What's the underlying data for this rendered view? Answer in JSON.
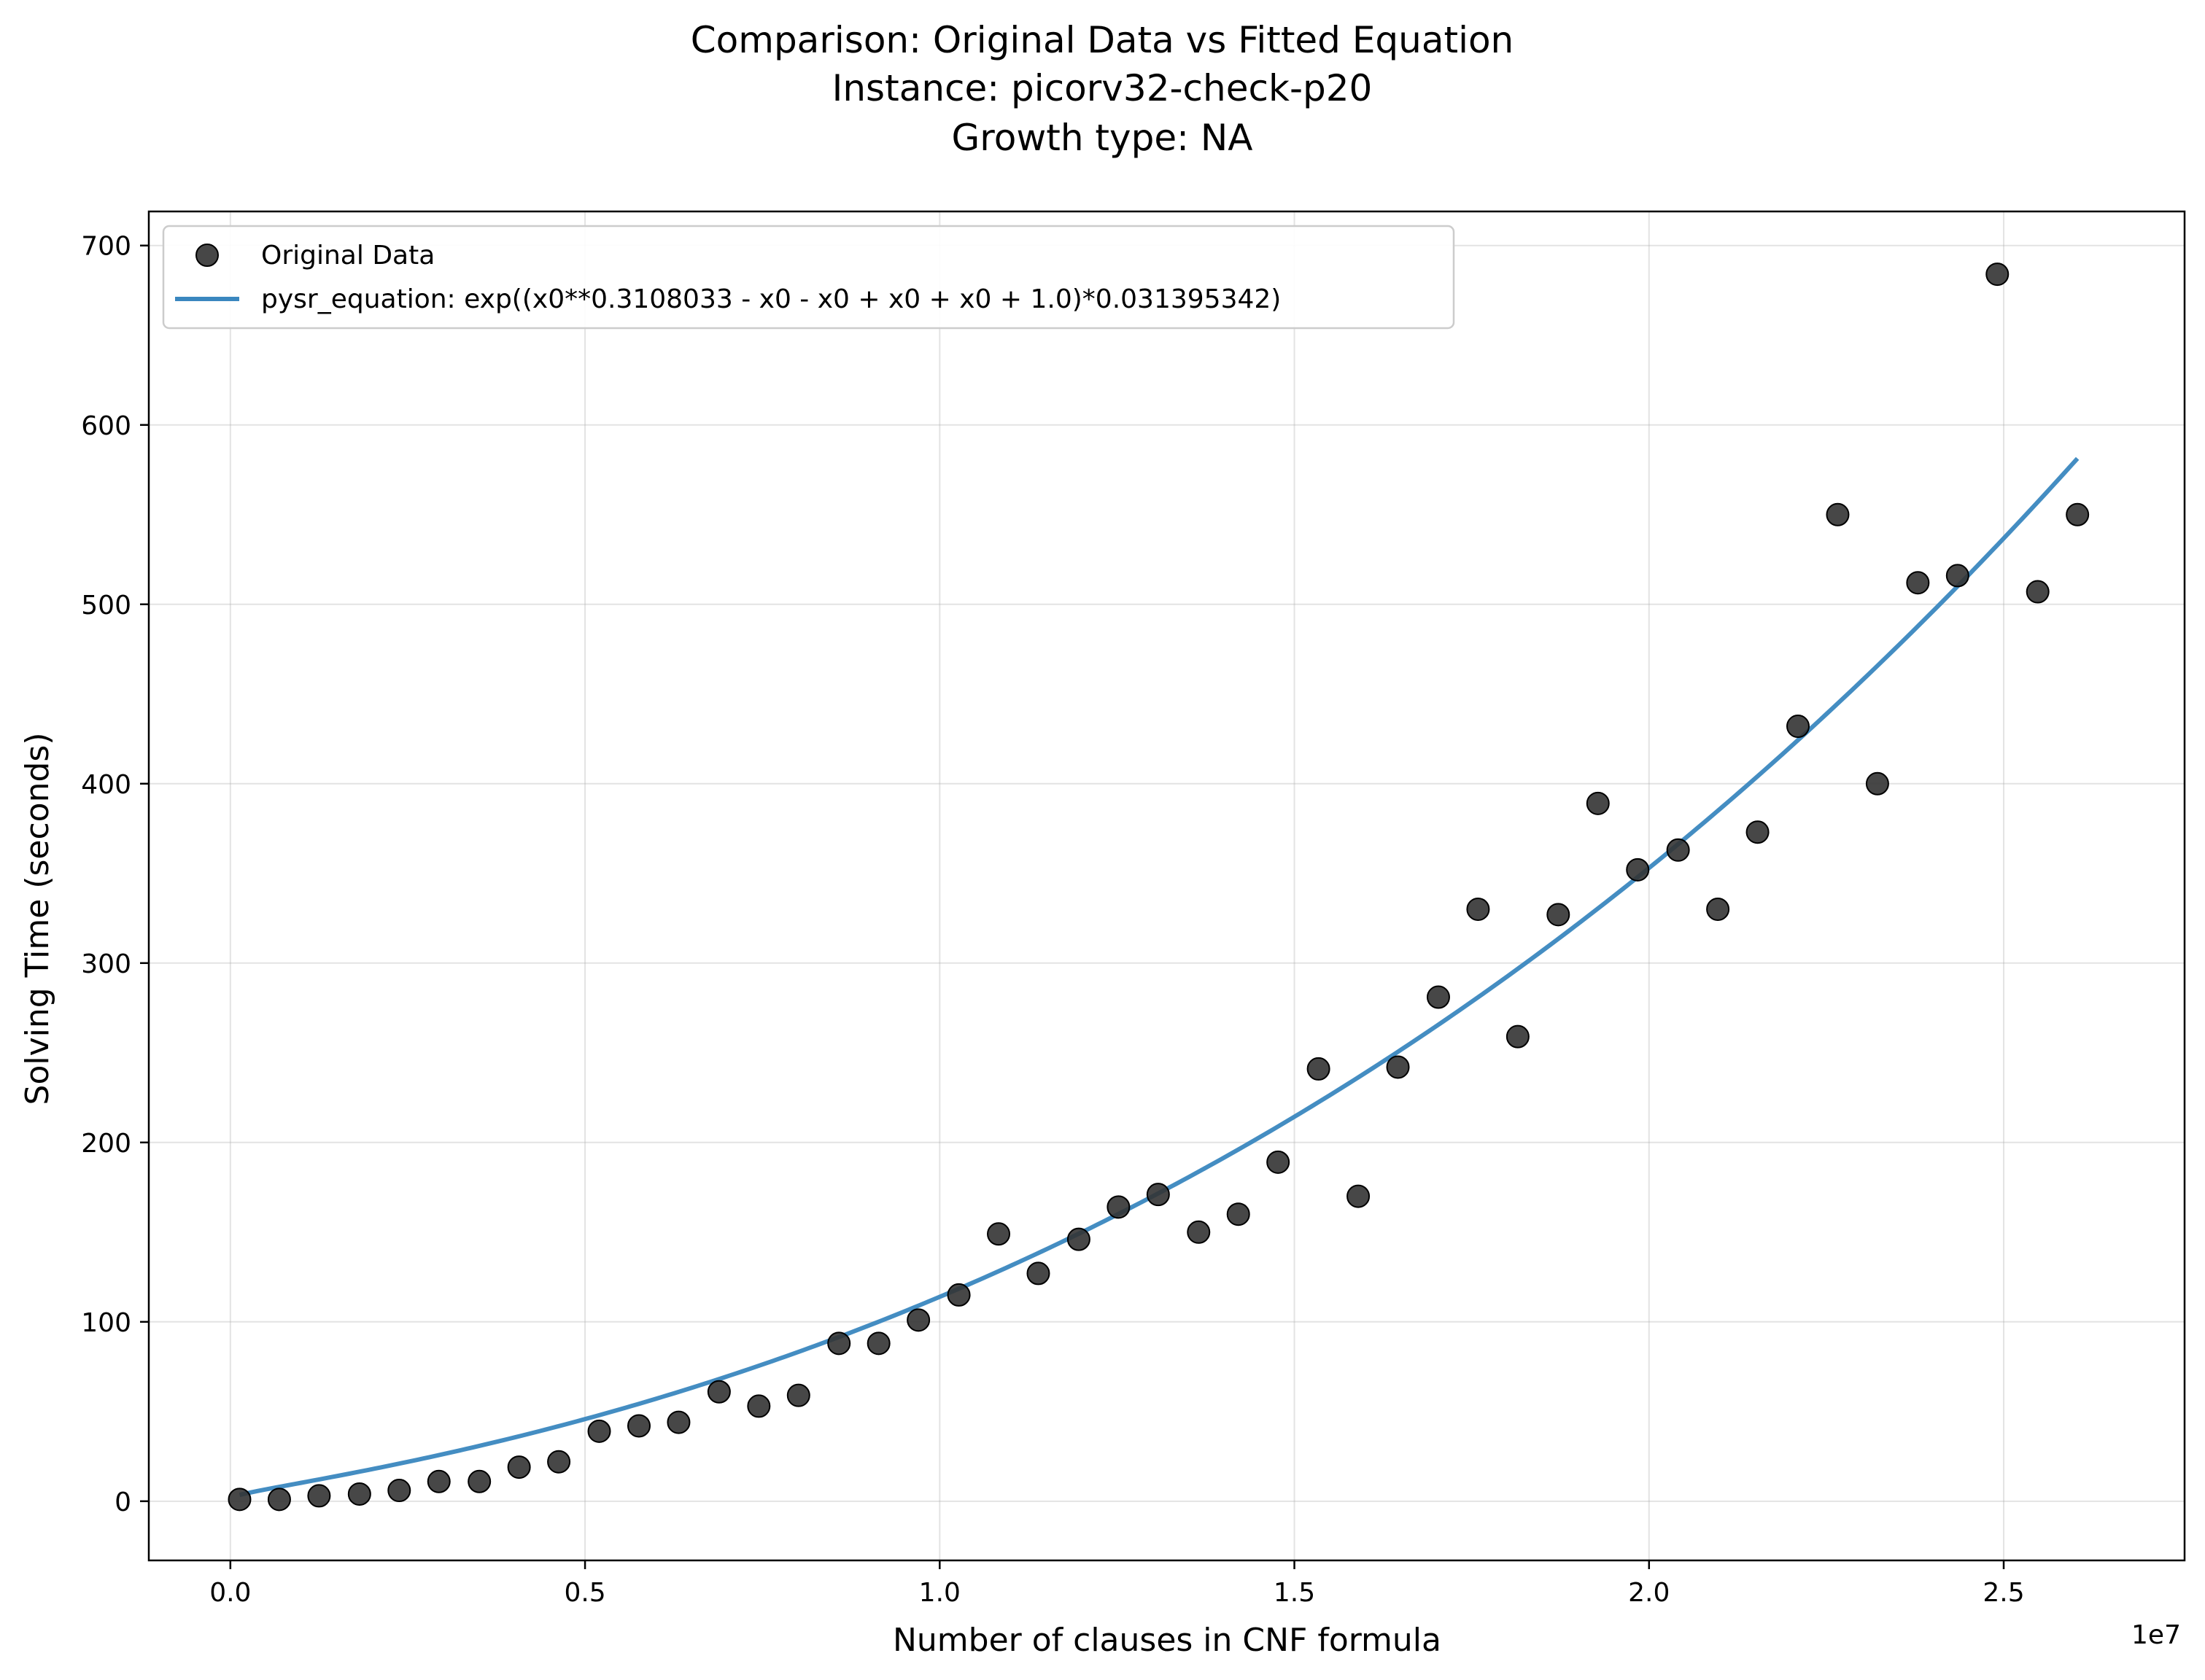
{
  "chart_data": {
    "type": "scatter",
    "title_lines": [
      "Comparison: Original Data vs Fitted Equation",
      "Instance: picorv32-check-p20",
      "Growth type: NA"
    ],
    "xlabel": "Number of clauses in CNF formula",
    "ylabel": "Solving Time (seconds)",
    "x_offset_label": "1e7",
    "x_scale": 10000000,
    "xlim": [
      -1150000,
      27550000
    ],
    "ylim": [
      -33,
      719
    ],
    "x_ticks": [
      0,
      5000000,
      10000000,
      15000000,
      20000000,
      25000000
    ],
    "x_tick_labels": [
      "0.0",
      "0.5",
      "1.0",
      "1.5",
      "2.0",
      "2.5"
    ],
    "y_ticks": [
      0,
      100,
      200,
      300,
      400,
      500,
      600,
      700
    ],
    "y_tick_labels": [
      "0",
      "100",
      "200",
      "300",
      "400",
      "500",
      "600",
      "700"
    ],
    "grid": true,
    "legend_position": "top-left",
    "series": [
      {
        "name": "Original Data",
        "kind": "scatter",
        "color": "#333333",
        "x": [
          130000,
          690000,
          1250000,
          1820000,
          2380000,
          2940000,
          3510000,
          4070000,
          4630000,
          5200000,
          5760000,
          6320000,
          6890000,
          7450000,
          8010000,
          8580000,
          9140000,
          9700000,
          10270000,
          10830000,
          11390000,
          11960000,
          12520000,
          13080000,
          13650000,
          14210000,
          14770000,
          15340000,
          15900000,
          16460000,
          17030000,
          17590000,
          18150000,
          18720000,
          19280000,
          19840000,
          20410000,
          20970000,
          21530000,
          22100000,
          22660000,
          23220000,
          23790000,
          24350000,
          24910000,
          25480000,
          26040000
        ],
        "y": [
          1,
          1,
          3,
          4,
          6,
          11,
          11,
          19,
          22,
          39,
          42,
          44,
          61,
          53,
          59,
          88,
          88,
          101,
          115,
          149,
          127,
          146,
          164,
          171,
          150,
          160,
          189,
          241,
          170,
          242,
          281,
          330,
          259,
          327,
          389,
          352,
          363,
          330,
          373,
          432,
          550,
          400,
          512,
          516,
          684,
          507,
          550
        ]
      },
      {
        "name": "pysr_equation: exp((x0**0.3108033 - x0 - x0 + x0 + x0 + 1.0)*0.031395342)",
        "kind": "line",
        "color": "#3a87bf",
        "exponent": 0.3108033,
        "coefficient": 0.031395342,
        "x_range": [
          130000,
          26040000
        ]
      }
    ]
  }
}
